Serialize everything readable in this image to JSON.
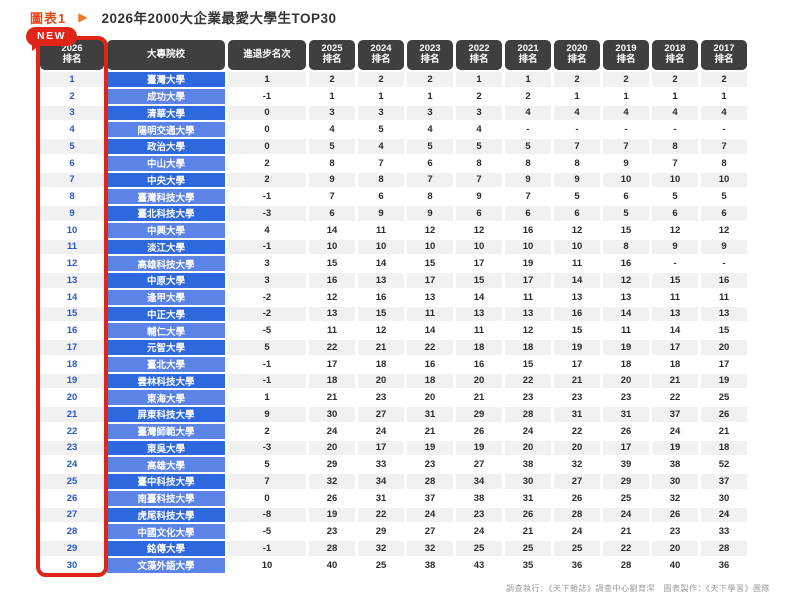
{
  "page": {
    "figure_label": "圖表1",
    "title": "2026年2000大企業最愛大學生TOP30",
    "new_badge": "NEW",
    "footer": "調查執行：《天下雜誌》調查中心劉育潔　圖表製作：《天下學習》團隊"
  },
  "colors": {
    "accent_red": "#e02417",
    "accent_orange": "#f0761f",
    "header_dark": "#3f3f3f",
    "school_blue_dark": "#2e68df",
    "school_blue_light": "#5c83e8",
    "rank_text_blue": "#2b57cc",
    "stripe_gray": "#f1f1f1"
  },
  "chart_data": {
    "type": "table",
    "title": "2026年2000大企業最愛大學生TOP30",
    "figure_label": "圖表1",
    "columns": [
      "2026排名",
      "大專院校",
      "進退步名次",
      "2025排名",
      "2024排名",
      "2023排名",
      "2022排名",
      "2021排名",
      "2020排名",
      "2019排名",
      "2018排名",
      "2017排名"
    ],
    "header_lines": [
      "2026\n排名",
      "大專院校",
      "進退步名次",
      "2025\n排名",
      "2024\n排名",
      "2023\n排名",
      "2022\n排名",
      "2021\n排名",
      "2020\n排名",
      "2019\n排名",
      "2018\n排名",
      "2017\n排名"
    ],
    "rows": [
      {
        "rank": "1",
        "school": "臺灣大學",
        "change": "1",
        "history": [
          "2",
          "2",
          "2",
          "1",
          "1",
          "2",
          "2",
          "2",
          "2"
        ]
      },
      {
        "rank": "2",
        "school": "成功大學",
        "change": "-1",
        "history": [
          "1",
          "1",
          "1",
          "2",
          "2",
          "1",
          "1",
          "1",
          "1"
        ]
      },
      {
        "rank": "3",
        "school": "清華大學",
        "change": "0",
        "history": [
          "3",
          "3",
          "3",
          "3",
          "4",
          "4",
          "4",
          "4",
          "4"
        ]
      },
      {
        "rank": "4",
        "school": "陽明交通大學",
        "change": "0",
        "history": [
          "4",
          "5",
          "4",
          "4",
          "-",
          "-",
          "-",
          "-",
          "-"
        ]
      },
      {
        "rank": "5",
        "school": "政治大學",
        "change": "0",
        "history": [
          "5",
          "4",
          "5",
          "5",
          "5",
          "7",
          "7",
          "8",
          "7"
        ]
      },
      {
        "rank": "6",
        "school": "中山大學",
        "change": "2",
        "history": [
          "8",
          "7",
          "6",
          "8",
          "8",
          "8",
          "9",
          "7",
          "8"
        ]
      },
      {
        "rank": "7",
        "school": "中央大學",
        "change": "2",
        "history": [
          "9",
          "8",
          "7",
          "7",
          "9",
          "9",
          "10",
          "10",
          "10"
        ]
      },
      {
        "rank": "8",
        "school": "臺灣科技大學",
        "change": "-1",
        "history": [
          "7",
          "6",
          "8",
          "9",
          "7",
          "5",
          "6",
          "5",
          "5"
        ]
      },
      {
        "rank": "9",
        "school": "臺北科技大學",
        "change": "-3",
        "history": [
          "6",
          "9",
          "9",
          "6",
          "6",
          "6",
          "5",
          "6",
          "6"
        ]
      },
      {
        "rank": "10",
        "school": "中興大學",
        "change": "4",
        "history": [
          "14",
          "11",
          "12",
          "12",
          "16",
          "12",
          "15",
          "12",
          "12"
        ]
      },
      {
        "rank": "11",
        "school": "淡江大學",
        "change": "-1",
        "history": [
          "10",
          "10",
          "10",
          "10",
          "10",
          "10",
          "8",
          "9",
          "9"
        ]
      },
      {
        "rank": "12",
        "school": "高雄科技大學",
        "change": "3",
        "history": [
          "15",
          "14",
          "15",
          "17",
          "19",
          "11",
          "16",
          "-",
          "-"
        ]
      },
      {
        "rank": "13",
        "school": "中原大學",
        "change": "3",
        "history": [
          "16",
          "13",
          "17",
          "15",
          "17",
          "14",
          "12",
          "15",
          "16"
        ]
      },
      {
        "rank": "14",
        "school": "逢甲大學",
        "change": "-2",
        "history": [
          "12",
          "16",
          "13",
          "14",
          "11",
          "13",
          "13",
          "11",
          "11"
        ]
      },
      {
        "rank": "15",
        "school": "中正大學",
        "change": "-2",
        "history": [
          "13",
          "15",
          "11",
          "13",
          "13",
          "16",
          "14",
          "13",
          "13"
        ]
      },
      {
        "rank": "16",
        "school": "輔仁大學",
        "change": "-5",
        "history": [
          "11",
          "12",
          "14",
          "11",
          "12",
          "15",
          "11",
          "14",
          "15"
        ]
      },
      {
        "rank": "17",
        "school": "元智大學",
        "change": "5",
        "history": [
          "22",
          "21",
          "22",
          "18",
          "18",
          "19",
          "19",
          "17",
          "20"
        ]
      },
      {
        "rank": "18",
        "school": "臺北大學",
        "change": "-1",
        "history": [
          "17",
          "18",
          "16",
          "16",
          "15",
          "17",
          "18",
          "18",
          "17"
        ]
      },
      {
        "rank": "19",
        "school": "雲林科技大學",
        "change": "-1",
        "history": [
          "18",
          "20",
          "18",
          "20",
          "22",
          "21",
          "20",
          "21",
          "19"
        ]
      },
      {
        "rank": "20",
        "school": "東海大學",
        "change": "1",
        "history": [
          "21",
          "23",
          "20",
          "21",
          "23",
          "23",
          "23",
          "22",
          "25"
        ]
      },
      {
        "rank": "21",
        "school": "屏東科技大學",
        "change": "9",
        "history": [
          "30",
          "27",
          "31",
          "29",
          "28",
          "31",
          "31",
          "37",
          "26"
        ]
      },
      {
        "rank": "22",
        "school": "臺灣師範大學",
        "change": "2",
        "history": [
          "24",
          "24",
          "21",
          "26",
          "24",
          "22",
          "26",
          "24",
          "21"
        ]
      },
      {
        "rank": "23",
        "school": "東吳大學",
        "change": "-3",
        "history": [
          "20",
          "17",
          "19",
          "19",
          "20",
          "20",
          "17",
          "19",
          "18"
        ]
      },
      {
        "rank": "24",
        "school": "高雄大學",
        "change": "5",
        "history": [
          "29",
          "33",
          "23",
          "27",
          "38",
          "32",
          "39",
          "38",
          "52"
        ]
      },
      {
        "rank": "25",
        "school": "臺中科技大學",
        "change": "7",
        "history": [
          "32",
          "34",
          "28",
          "34",
          "30",
          "27",
          "29",
          "30",
          "37"
        ]
      },
      {
        "rank": "26",
        "school": "南臺科技大學",
        "change": "0",
        "history": [
          "26",
          "31",
          "37",
          "38",
          "31",
          "26",
          "25",
          "32",
          "30"
        ]
      },
      {
        "rank": "27",
        "school": "虎尾科技大學",
        "change": "-8",
        "history": [
          "19",
          "22",
          "24",
          "23",
          "26",
          "28",
          "24",
          "26",
          "24"
        ]
      },
      {
        "rank": "28",
        "school": "中國文化大學",
        "change": "-5",
        "history": [
          "23",
          "29",
          "27",
          "24",
          "21",
          "24",
          "21",
          "23",
          "33"
        ]
      },
      {
        "rank": "29",
        "school": "銘傳大學",
        "change": "-1",
        "history": [
          "28",
          "32",
          "32",
          "25",
          "25",
          "25",
          "22",
          "20",
          "28"
        ]
      },
      {
        "rank": "30",
        "school": "文藻外語大學",
        "change": "10",
        "history": [
          "40",
          "25",
          "38",
          "43",
          "35",
          "36",
          "28",
          "40",
          "36"
        ]
      }
    ]
  }
}
